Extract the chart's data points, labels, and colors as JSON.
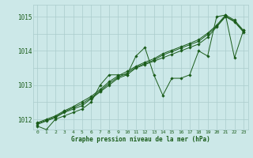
{
  "title": "Graphe pression niveau de la mer (hPa)",
  "background_color": "#cce8e8",
  "grid_color": "#aacccc",
  "line_color": "#1a5c1a",
  "xlim": [
    -0.5,
    23.5
  ],
  "ylim": [
    1011.7,
    1015.35
  ],
  "yticks": [
    1012,
    1013,
    1014,
    1015
  ],
  "xticks": [
    0,
    1,
    2,
    3,
    4,
    5,
    6,
    7,
    8,
    9,
    10,
    11,
    12,
    13,
    14,
    15,
    16,
    17,
    18,
    19,
    20,
    21,
    22,
    23
  ],
  "series": [
    [
      1011.8,
      1011.7,
      1012.0,
      1012.1,
      1012.2,
      1012.3,
      1012.5,
      1013.0,
      1013.3,
      1013.3,
      1013.3,
      1013.85,
      1014.1,
      1013.3,
      1012.7,
      1013.2,
      1013.2,
      1013.3,
      1014.0,
      1013.85,
      1015.0,
      1015.05,
      1013.8,
      1014.6
    ],
    [
      1011.85,
      1011.95,
      1012.05,
      1012.2,
      1012.3,
      1012.4,
      1012.6,
      1012.8,
      1013.0,
      1013.2,
      1013.3,
      1013.5,
      1013.6,
      1013.7,
      1013.8,
      1013.9,
      1014.0,
      1014.1,
      1014.2,
      1014.4,
      1014.7,
      1015.0,
      1014.85,
      1014.55
    ],
    [
      1011.88,
      1011.97,
      1012.07,
      1012.22,
      1012.34,
      1012.46,
      1012.63,
      1012.83,
      1013.05,
      1013.23,
      1013.35,
      1013.52,
      1013.63,
      1013.73,
      1013.88,
      1013.98,
      1014.08,
      1014.18,
      1014.28,
      1014.48,
      1014.72,
      1015.02,
      1014.87,
      1014.57
    ],
    [
      1011.9,
      1012.0,
      1012.1,
      1012.25,
      1012.37,
      1012.52,
      1012.67,
      1012.87,
      1013.1,
      1013.27,
      1013.4,
      1013.55,
      1013.67,
      1013.77,
      1013.92,
      1014.02,
      1014.12,
      1014.22,
      1014.33,
      1014.52,
      1014.75,
      1015.05,
      1014.9,
      1014.6
    ]
  ]
}
